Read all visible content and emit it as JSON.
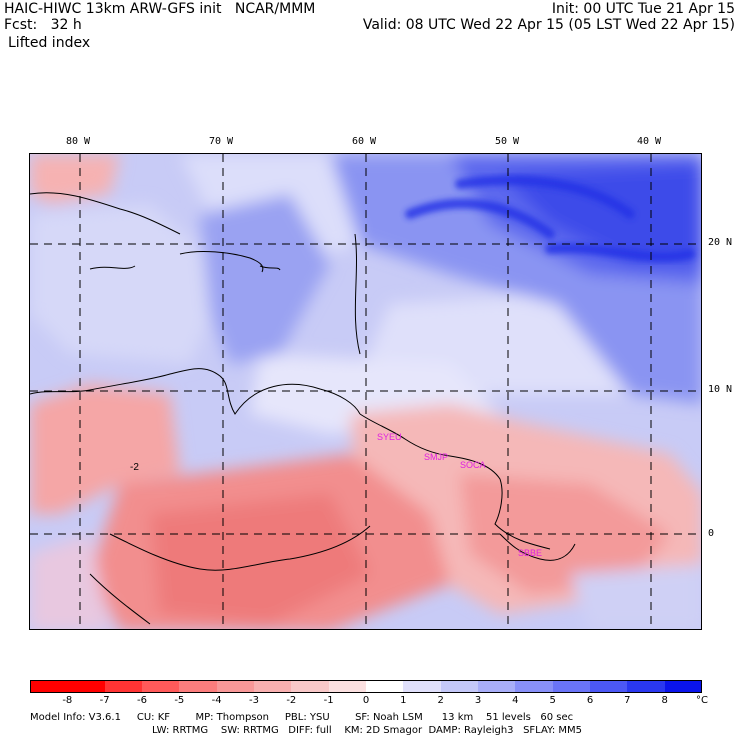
{
  "header": {
    "title": "HAIC-HIWC 13km ARW-GFS init   NCAR/MMM",
    "forecast": "Fcst:   32 h",
    "field": "Lifted index",
    "init": "Init: 00 UTC Tue 21 Apr 15",
    "valid": "Valid: 08 UTC Wed 22 Apr 15 (05 LST Wed 22 Apr 15)"
  },
  "map": {
    "longitude_labels": [
      "80 W",
      "70 W",
      "60 W",
      "50 W",
      "40 W"
    ],
    "latitude_labels": [
      "20 N",
      "10 N",
      "0"
    ],
    "station_labels": [
      "SYEU",
      "SMJP",
      "SOCA",
      "SBBE"
    ],
    "contour_label": "-2",
    "station_color": "#e020e0"
  },
  "colorbar": {
    "unit": "°C",
    "tick_labels": [
      "-8",
      "-7",
      "-6",
      "-5",
      "-4",
      "-3",
      "-2",
      "-1",
      "0",
      "1",
      "2",
      "3",
      "4",
      "5",
      "6",
      "7",
      "8"
    ],
    "colors": [
      "#ff0000",
      "#ff3434",
      "#ff5a5a",
      "#fb7d7d",
      "#f89898",
      "#f8b0b0",
      "#f8c8c8",
      "#fbe0e0",
      "#ffffff",
      "#e0e0fb",
      "#c4c8f8",
      "#a8aef8",
      "#8890f8",
      "#6a74f7",
      "#4c58f5",
      "#2a38f0",
      "#0a14ec"
    ]
  },
  "footer": {
    "line1": "Model Info: V3.6.1     CU: KF        MP: Thompson     PBL: YSU        SF: Noah LSM      13 km    51 levels   60 sec",
    "line2": "LW: RRTMG    SW: RRTMG   DIFF: full    KM: 2D Smagor  DAMP: Rayleigh3   SFLAY: MM5"
  }
}
